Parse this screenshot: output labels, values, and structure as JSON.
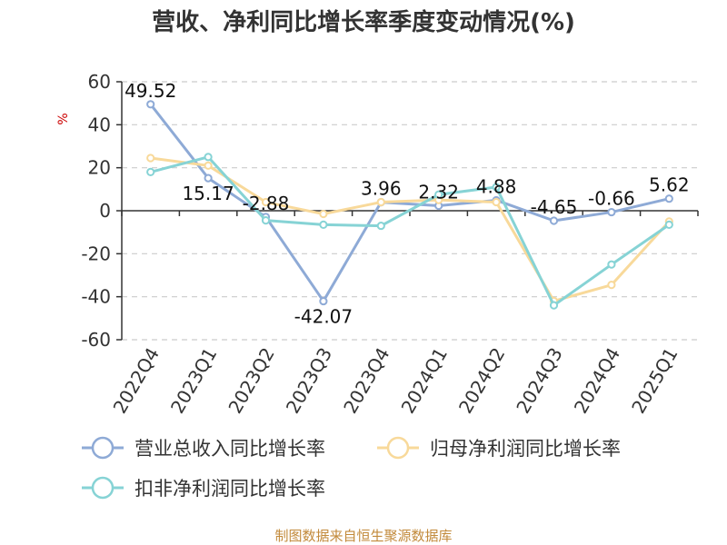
{
  "chart_data": {
    "type": "line",
    "title": "营收、净利同比增长率季度变动情况(%)",
    "ylabel": "%",
    "xlabel": "",
    "categories": [
      "2022Q4",
      "2023Q1",
      "2023Q2",
      "2023Q3",
      "2023Q4",
      "2024Q1",
      "2024Q2",
      "2024Q3",
      "2024Q4",
      "2025Q1"
    ],
    "ylim": [
      -60,
      60
    ],
    "yticks": [
      60,
      40,
      20,
      0,
      -20,
      -40,
      -60
    ],
    "grid": true,
    "legend_position": "bottom-left",
    "series": [
      {
        "name": "营业总收入同比增长率",
        "color": "#8eaad6",
        "values": [
          49.52,
          15.17,
          -2.88,
          -42.07,
          3.96,
          2.32,
          4.88,
          -4.65,
          -0.66,
          5.62
        ],
        "labels": [
          "49.52",
          "15.17",
          "-2.88",
          "-42.07",
          "3.96",
          "2.32",
          "4.88",
          "-4.65",
          "-0.66",
          "5.62"
        ]
      },
      {
        "name": "归母净利润同比增长率",
        "color": "#f8d99a",
        "values": [
          24.5,
          21.0,
          4.0,
          -1.5,
          4.0,
          5.0,
          4.0,
          -42.0,
          -34.5,
          -5.0
        ]
      },
      {
        "name": "扣非净利润同比增长率",
        "color": "#86d3d5",
        "values": [
          18.0,
          25.0,
          -4.5,
          -6.5,
          -7.0,
          7.5,
          11.0,
          -44.0,
          -25.0,
          -6.5
        ]
      }
    ],
    "source": "制图数据来自恒生聚源数据库"
  }
}
